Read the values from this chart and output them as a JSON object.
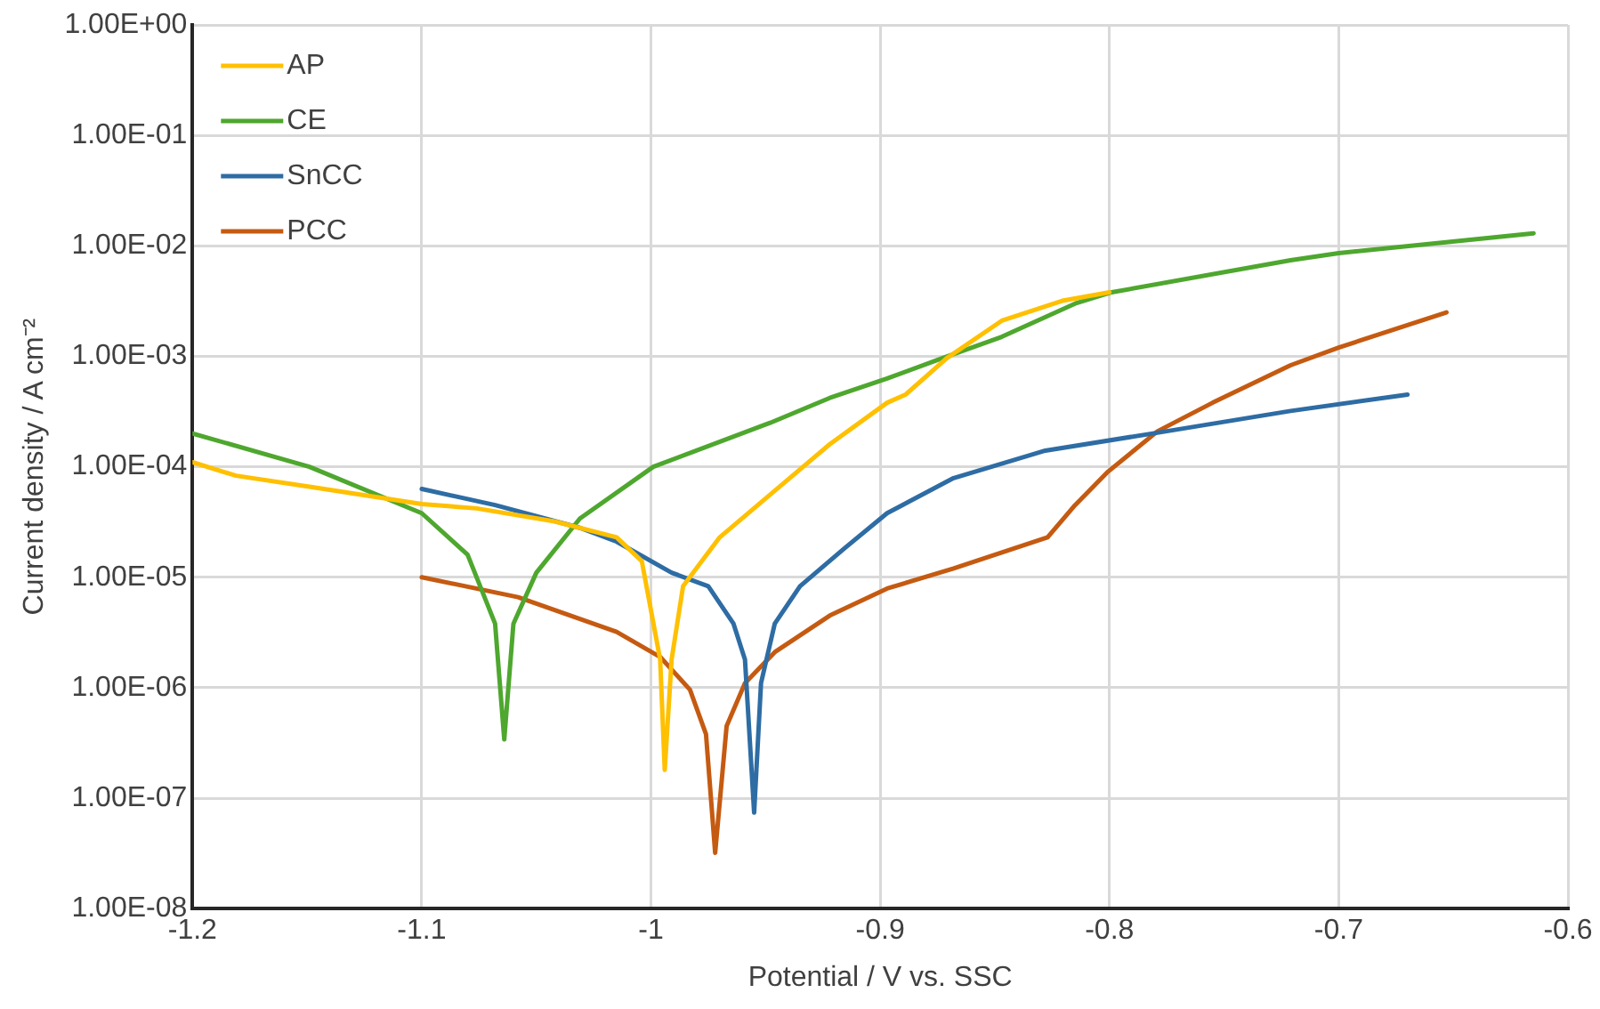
{
  "chart_data": {
    "type": "line",
    "xlabel": "Potential / V vs. SSC",
    "ylabel": "Current density / A cm⁻²",
    "log": "y",
    "grid": true,
    "legend": "top left",
    "marker": "none",
    "line_style": "solid",
    "xlim": [
      -1.2,
      -0.6
    ],
    "xticks": [
      -1.2,
      -1.1,
      -1,
      -0.9,
      -0.8,
      -0.7,
      -0.6
    ],
    "ylim": [
      1e-08,
      1
    ],
    "yticks": [
      {
        "value": 1e-08,
        "label": "1.00E-08"
      },
      {
        "value": 1e-07,
        "label": "1.00E-07"
      },
      {
        "value": 1e-06,
        "label": "1.00E-06"
      },
      {
        "value": 1e-05,
        "label": "1.00E-05"
      },
      {
        "value": 0.0001,
        "label": "1.00E-04"
      },
      {
        "value": 0.001,
        "label": "1.00E-03"
      },
      {
        "value": 0.01,
        "label": "1.00E-02"
      },
      {
        "value": 0.1,
        "label": "1.00E-01"
      },
      {
        "value": 1,
        "label": "1.00E+00"
      }
    ],
    "series": [
      {
        "name": "AP",
        "color": "#ffc000",
        "x": [
          -1.2,
          -1.181,
          -1.149,
          -1.1,
          -1.076,
          -1.042,
          -1.015,
          -1.004,
          -0.996,
          -0.994,
          -0.991,
          -0.986,
          -0.97,
          -0.948,
          -0.922,
          -0.897,
          -0.889,
          -0.871,
          -0.847,
          -0.82,
          -0.8
        ],
        "values": [
          0.00011,
          8.3e-05,
          6.6e-05,
          4.6e-05,
          4.2e-05,
          3.2e-05,
          2.3e-05,
          1.4e-05,
          1.8e-06,
          1.8e-07,
          1.8e-06,
          8.3e-06,
          2.3e-05,
          5.6e-05,
          0.00016,
          0.00038,
          0.00045,
          0.00096,
          0.0021,
          0.0032,
          0.0038
        ]
      },
      {
        "name": "CE",
        "color": "#4ea72e",
        "x": [
          -1.2,
          -1.149,
          -1.1,
          -1.08,
          -1.068,
          -1.064,
          -1.06,
          -1.05,
          -1.031,
          -0.999,
          -0.948,
          -0.922,
          -0.897,
          -0.873,
          -0.847,
          -0.815,
          -0.799,
          -0.721,
          -0.7,
          -0.615
        ],
        "values": [
          0.0002,
          0.0001,
          3.8e-05,
          1.6e-05,
          3.8e-06,
          3.4e-07,
          3.8e-06,
          1.1e-05,
          3.4e-05,
          0.0001,
          0.00025,
          0.00042,
          0.00063,
          0.00096,
          0.0015,
          0.003,
          0.0038,
          0.0074,
          0.0086,
          0.013
        ]
      },
      {
        "name": "SnCC",
        "color": "#2e6ca4",
        "x": [
          -1.1,
          -1.068,
          -1.031,
          -1.015,
          -0.991,
          -0.975,
          -0.964,
          -0.959,
          -0.955,
          -0.952,
          -0.946,
          -0.935,
          -0.916,
          -0.897,
          -0.868,
          -0.828,
          -0.775,
          -0.721,
          -0.67
        ],
        "values": [
          6.3e-05,
          4.5e-05,
          2.8e-05,
          2.1e-05,
          1.1e-05,
          8.3e-06,
          3.8e-06,
          1.8e-06,
          7.4e-08,
          1.1e-06,
          3.8e-06,
          8.3e-06,
          1.8e-05,
          3.8e-05,
          7.9e-05,
          0.00014,
          0.00021,
          0.00032,
          0.00045
        ]
      },
      {
        "name": "PCC",
        "color": "#c55a11",
        "x": [
          -1.1,
          -1.058,
          -1.015,
          -0.996,
          -0.983,
          -0.976,
          -0.972,
          -0.967,
          -0.959,
          -0.946,
          -0.922,
          -0.897,
          -0.868,
          -0.827,
          -0.815,
          -0.801,
          -0.779,
          -0.755,
          -0.721,
          -0.7,
          -0.653
        ],
        "values": [
          1e-05,
          6.6e-06,
          3.2e-06,
          1.9e-06,
          9.6e-07,
          3.8e-07,
          3.2e-08,
          4.5e-07,
          1.1e-06,
          2.1e-06,
          4.5e-06,
          7.9e-06,
          1.2e-05,
          2.3e-05,
          4.5e-05,
          8.9e-05,
          0.00021,
          0.00038,
          0.00083,
          0.0012,
          0.0025
        ]
      }
    ]
  }
}
